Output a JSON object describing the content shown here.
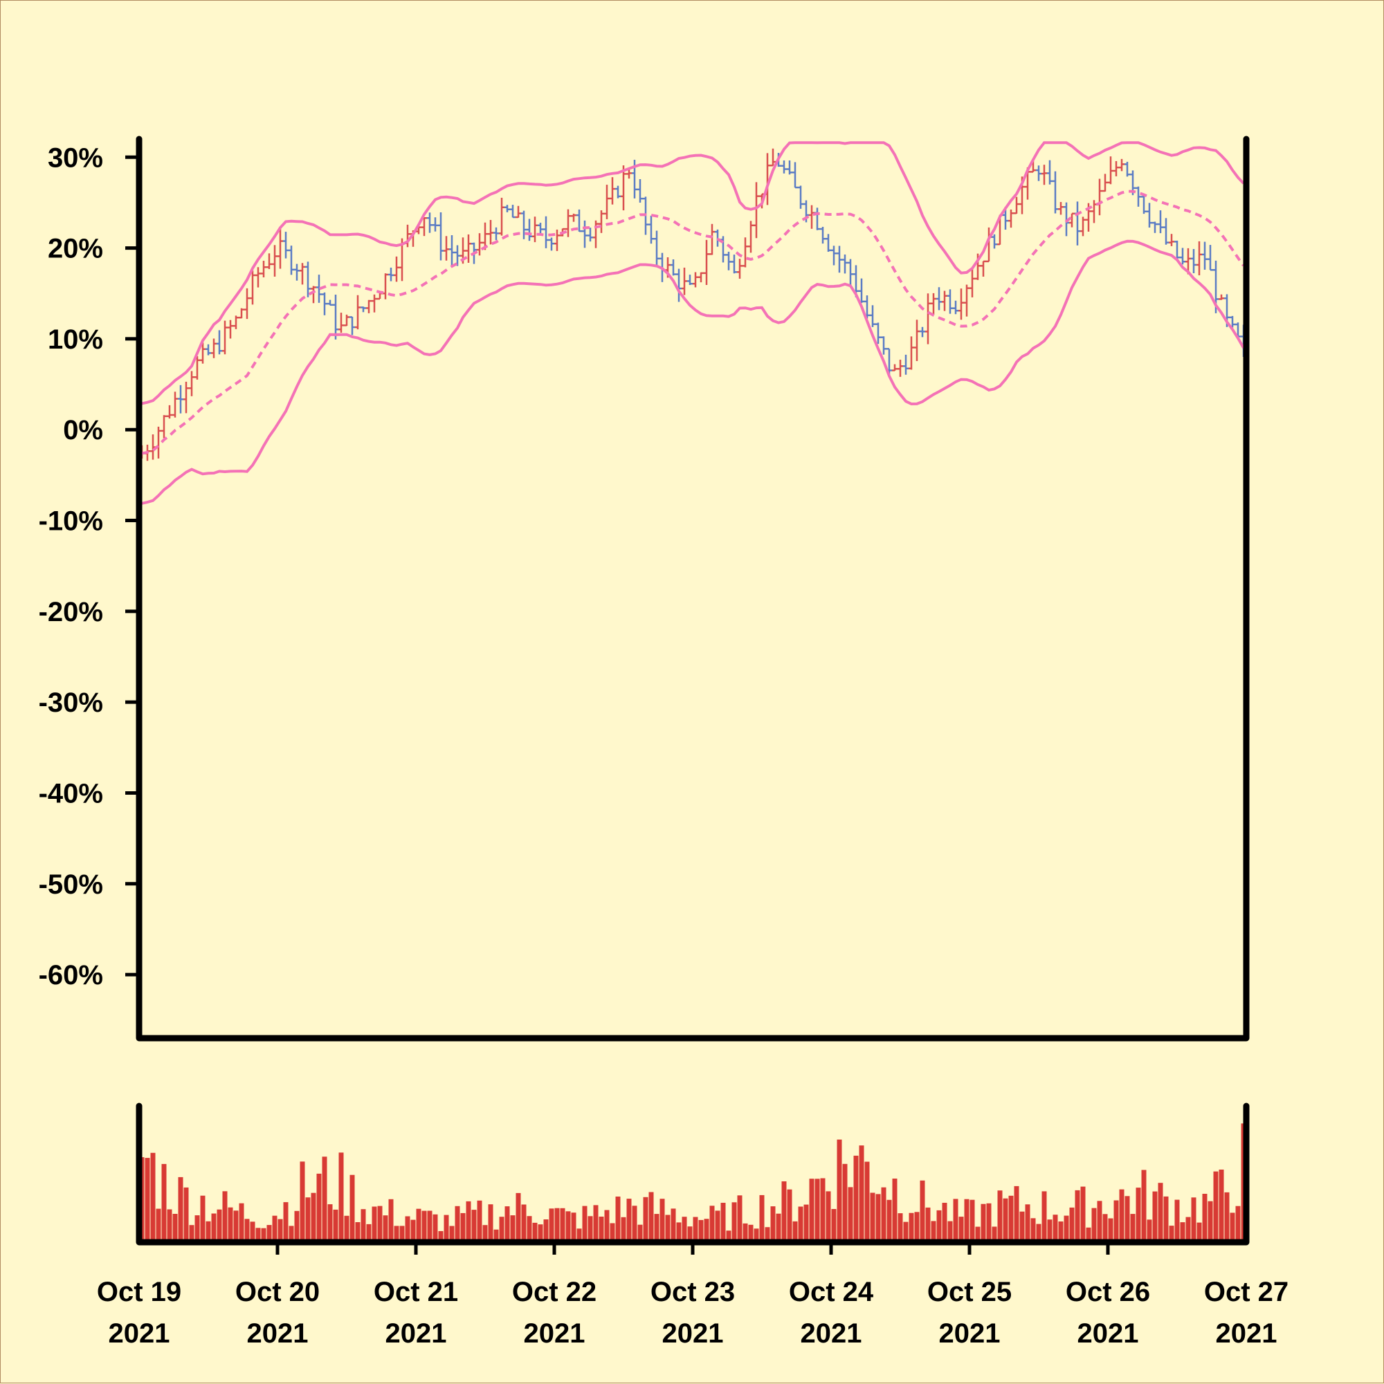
{
  "colors": {
    "background": "#fff8cc",
    "band": "#f472b6",
    "up": "#d94f4f",
    "down": "#5b7cc4",
    "volume": "#d83a34",
    "axis": "#000000"
  },
  "chart_data": {
    "type": "ohlc",
    "title": "",
    "xlabel": "",
    "ylabel": "",
    "y_unit": "percent",
    "ylim": [
      -67,
      32
    ],
    "y_ticks": [
      30,
      20,
      10,
      0,
      -10,
      -20,
      -30,
      -40,
      -50,
      -60
    ],
    "y_tick_labels": [
      "30%",
      "20%",
      "10%",
      "0%",
      "-10%",
      "-20%",
      "-30%",
      "-40%",
      "-50%",
      "-60%"
    ],
    "x_range": [
      "2021-10-19",
      "2021-10-27"
    ],
    "x_tick_labels": [
      {
        "date": "Oct 19",
        "year": "2021"
      },
      {
        "date": "Oct 20",
        "year": "2021"
      },
      {
        "date": "Oct 21",
        "year": "2021"
      },
      {
        "date": "Oct 22",
        "year": "2021"
      },
      {
        "date": "Oct 23",
        "year": "2021"
      },
      {
        "date": "Oct 24",
        "year": "2021"
      },
      {
        "date": "Oct 25",
        "year": "2021"
      },
      {
        "date": "Oct 26",
        "year": "2021"
      },
      {
        "date": "Oct 27",
        "year": "2021"
      }
    ],
    "overlays": [
      "bollinger-upper",
      "moving-average-dashed",
      "bollinger-lower"
    ],
    "volume_panel": true,
    "close_path_days": [
      0,
      0.1,
      0.25,
      0.4,
      0.55,
      0.7,
      0.85,
      1.0,
      1.15,
      1.3,
      1.45,
      1.6,
      1.75,
      1.9,
      2.05,
      2.2,
      2.35,
      2.5,
      2.65,
      2.8,
      2.95,
      3.1,
      3.25,
      3.4,
      3.55,
      3.7,
      3.85,
      4.0,
      4.15,
      4.3,
      4.45,
      4.6,
      4.75,
      4.9,
      5.0,
      5.15,
      5.3,
      5.45,
      5.6,
      5.75,
      5.9,
      6.05,
      6.2,
      6.35,
      6.5,
      6.65,
      6.8,
      6.95,
      7.1,
      7.25,
      7.4,
      7.55,
      7.7,
      7.85,
      8.0
    ],
    "close_path_pct": [
      -3,
      -1,
      3,
      7,
      9,
      12,
      17,
      20,
      18,
      15,
      11,
      13,
      16,
      20,
      24,
      20,
      19,
      21,
      24,
      22,
      21,
      23,
      22,
      25,
      29,
      20,
      17,
      15,
      22,
      17,
      25,
      30,
      26,
      23,
      20,
      17,
      11,
      6,
      9,
      15,
      14,
      18,
      22,
      26,
      29,
      24,
      22,
      26,
      30,
      25,
      21,
      18,
      19,
      12,
      8
    ],
    "volume_level_pct": [
      78,
      55,
      40,
      35,
      30,
      25,
      22,
      28,
      45,
      50,
      48,
      30,
      25,
      22,
      20,
      18,
      22,
      24,
      28,
      30,
      25,
      20,
      22,
      26,
      30,
      28,
      25,
      22,
      20,
      24,
      28,
      32,
      35,
      50,
      65,
      70,
      60,
      45,
      35,
      28,
      22,
      25,
      30,
      32,
      30,
      28,
      30,
      34,
      38,
      40,
      35,
      30,
      32,
      45,
      70
    ]
  }
}
